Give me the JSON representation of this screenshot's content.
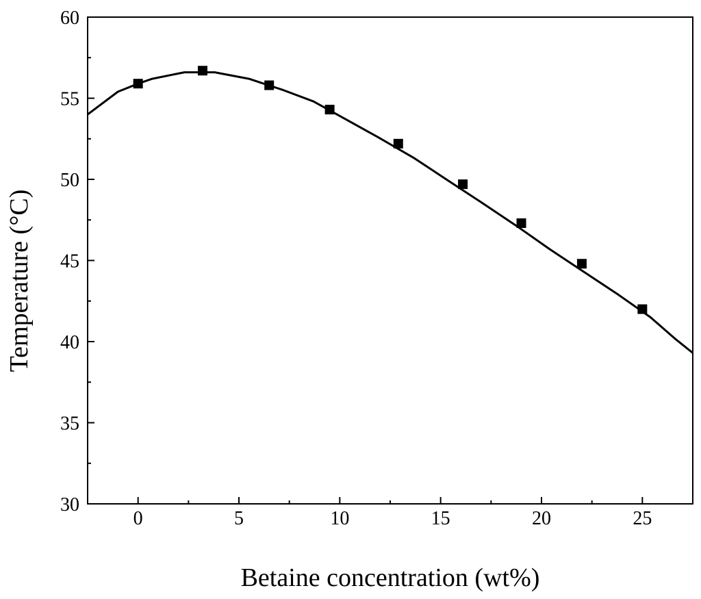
{
  "chart_data": {
    "type": "line",
    "xlabel": "Betaine concentration (wt%)",
    "ylabel": "Temperature (°C)",
    "xlim": [
      -2.5,
      27.5
    ],
    "ylim": [
      30,
      60
    ],
    "x_ticks": [
      0,
      5,
      10,
      15,
      20,
      25
    ],
    "y_ticks": [
      30,
      35,
      40,
      45,
      50,
      55,
      60
    ],
    "grid": false,
    "series": [
      {
        "markers": "square",
        "x": [
          0,
          3.2,
          6.5,
          9.5,
          12.9,
          16.1,
          19.0,
          22.0,
          25.0
        ],
        "y": [
          55.9,
          56.7,
          55.8,
          54.3,
          52.2,
          49.7,
          47.3,
          44.8,
          42.0
        ]
      }
    ],
    "fitted_curve": {
      "x": [
        -2.5,
        -1,
        0,
        0.7,
        2.3,
        3.8,
        5.5,
        7.2,
        8.7,
        10.3,
        11.9,
        13.7,
        15.4,
        17.0,
        18.8,
        20.4,
        22.1,
        23.8,
        25.4,
        26.6,
        27.5
      ],
      "y": [
        54.0,
        55.4,
        55.9,
        56.2,
        56.6,
        56.6,
        56.2,
        55.5,
        54.8,
        53.7,
        52.6,
        51.3,
        49.9,
        48.6,
        47.1,
        45.7,
        44.3,
        42.9,
        41.5,
        40.2,
        39.3
      ]
    }
  }
}
